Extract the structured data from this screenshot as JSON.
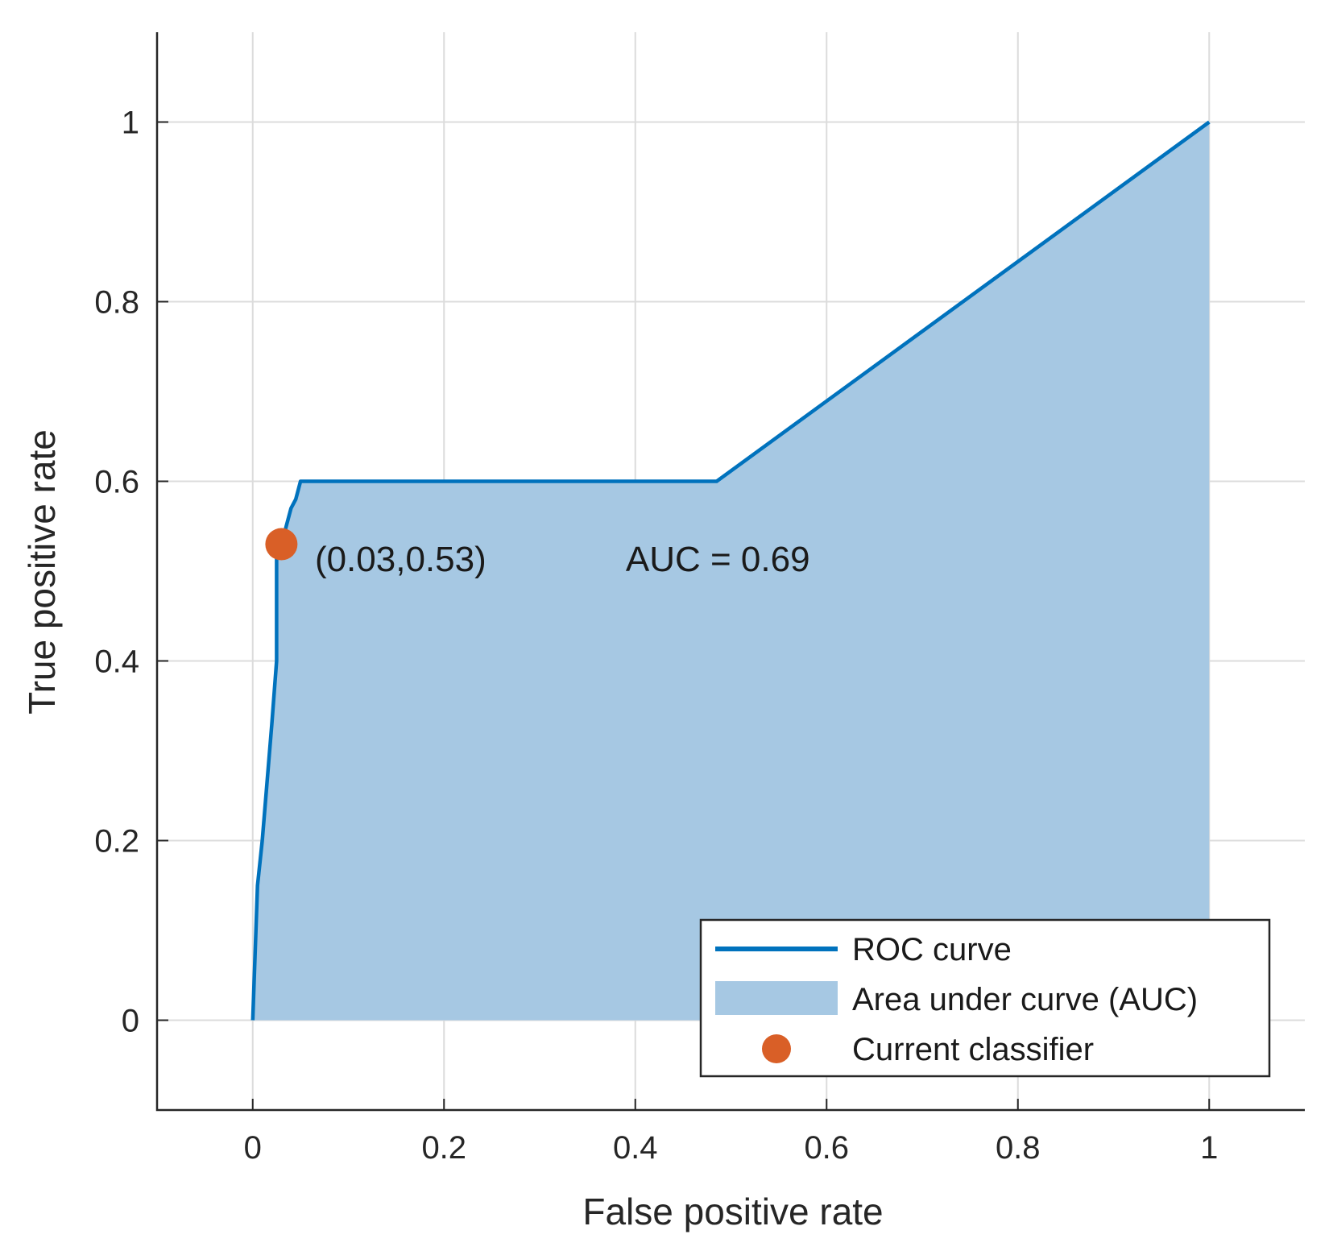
{
  "chart_data": {
    "type": "line",
    "xlabel": "False positive rate",
    "ylabel": "True positive rate",
    "xlim": [
      -0.1,
      1.1
    ],
    "ylim": [
      -0.1,
      1.1
    ],
    "x_ticks": [
      0,
      0.2,
      0.4,
      0.6,
      0.8,
      1
    ],
    "y_ticks": [
      0,
      0.2,
      0.4,
      0.6,
      0.8,
      1
    ],
    "x_tick_labels": [
      "0",
      "0.2",
      "0.4",
      "0.6",
      "0.8",
      "1"
    ],
    "y_tick_labels": [
      "0",
      "0.2",
      "0.4",
      "0.6",
      "0.8",
      "1"
    ],
    "grid": true,
    "series": [
      {
        "name": "ROC curve",
        "color": "#0072bd",
        "x": [
          0,
          0.005,
          0.01,
          0.02,
          0.025,
          0.025,
          0.03,
          0.04,
          0.045,
          0.05,
          0.485,
          1
        ],
        "y": [
          0,
          0.15,
          0.2,
          0.33,
          0.4,
          0.53,
          0.53,
          0.57,
          0.58,
          0.6,
          0.6,
          1
        ]
      },
      {
        "name": "Area under curve (AUC)",
        "color": "#a6c8e3"
      },
      {
        "name": "Current classifier",
        "color": "#d95f27",
        "x": [
          0.03
        ],
        "y": [
          0.53
        ]
      }
    ],
    "annotations": [
      {
        "text": "(0.03,0.53)",
        "x": 0.065,
        "y": 0.5
      },
      {
        "text": "AUC = 0.69",
        "x": 0.39,
        "y": 0.5
      }
    ],
    "legend": {
      "position": "bottom-right",
      "entries": [
        "ROC curve",
        "Area under curve (AUC)",
        "Current classifier"
      ]
    }
  }
}
